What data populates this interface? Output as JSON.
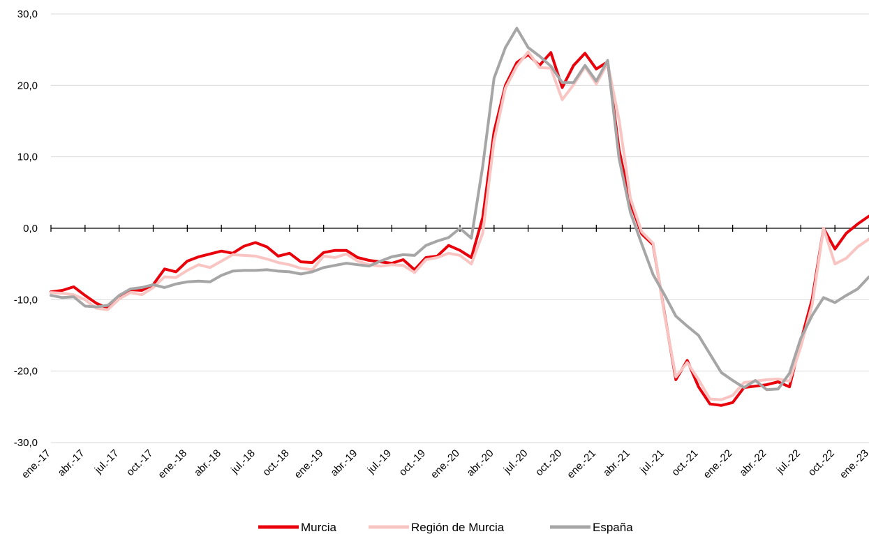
{
  "chart_data": {
    "type": "line",
    "ylim": [
      -30,
      30
    ],
    "yticks": [
      30,
      20,
      10,
      0,
      -10,
      -20,
      -30
    ],
    "ytick_labels": [
      "30,0",
      "20,0",
      "10,0",
      "0,0",
      "-10,0",
      "-20,0",
      "-30,0"
    ],
    "x_tick_labels": [
      "ene.-17",
      "abr.-17",
      "jul.-17",
      "oct.-17",
      "ene.-18",
      "abr.-18",
      "jul.-18",
      "oct.-18",
      "ene.-19",
      "abr.-19",
      "jul.-19",
      "oct.-19",
      "ene.-20",
      "abr.-20",
      "jul.-20",
      "oct.-20",
      "ene.-21",
      "abr.-21",
      "jul.-21",
      "oct.-21",
      "ene.-22",
      "abr.-22",
      "jul.-22",
      "oct.-22",
      "ene.-23"
    ],
    "x_start": "ene.-17",
    "x_end": "ene.-23",
    "x_frequency": "monthly",
    "grid": "horizontal",
    "legend_position": "bottom",
    "series": [
      {
        "name": "Murcia",
        "color": "#e8000b",
        "values": [
          -8.9,
          -8.7,
          -8.2,
          -9.4,
          -10.5,
          -11.2,
          -9.6,
          -8.6,
          -8.7,
          -7.9,
          -5.7,
          -6.1,
          -4.6,
          -4.0,
          -3.6,
          -3.2,
          -3.5,
          -2.5,
          -2.0,
          -2.6,
          -3.9,
          -3.5,
          -4.7,
          -4.8,
          -3.4,
          -3.1,
          -3.1,
          -4.1,
          -4.5,
          -4.7,
          -4.9,
          -4.4,
          -5.8,
          -4.1,
          -3.9,
          -2.4,
          -3.1,
          -4.1,
          1.5,
          13.5,
          20.0,
          23.2,
          24.3,
          22.8,
          24.6,
          19.7,
          22.8,
          24.5,
          22.3,
          23.3,
          11.0,
          3.5,
          -0.8,
          -2.3,
          -11.9,
          -21.2,
          -18.5,
          -22.2,
          -24.6,
          -24.8,
          -24.4,
          -22.3,
          -22.1,
          -21.9,
          -21.5,
          -22.2,
          -15.8,
          -9.9,
          0.0,
          -2.9,
          -0.7,
          0.6,
          1.7
        ]
      },
      {
        "name": "Región de Murcia",
        "color": "#f9c5c3",
        "values": [
          -9.0,
          -9.1,
          -9.3,
          -10.0,
          -11.2,
          -11.4,
          -9.9,
          -9.0,
          -9.3,
          -8.3,
          -6.8,
          -6.9,
          -5.9,
          -5.1,
          -5.5,
          -4.6,
          -3.7,
          -3.8,
          -3.9,
          -4.3,
          -4.8,
          -5.1,
          -5.6,
          -5.8,
          -3.9,
          -4.1,
          -3.6,
          -4.6,
          -5.1,
          -5.3,
          -5.1,
          -5.2,
          -6.2,
          -4.4,
          -4.1,
          -3.5,
          -3.8,
          -5.0,
          -0.7,
          12.2,
          19.6,
          22.7,
          24.7,
          22.5,
          22.4,
          18.0,
          20.1,
          22.6,
          20.2,
          23.1,
          15.2,
          4.2,
          -0.5,
          -2.1,
          -12.1,
          -20.8,
          -18.8,
          -21.2,
          -23.9,
          -24.0,
          -23.4,
          -21.6,
          -21.4,
          -21.2,
          -21.1,
          -21.4,
          -16.6,
          -10.7,
          0.0,
          -5.0,
          -4.2,
          -2.6,
          -1.5
        ]
      },
      {
        "name": "España",
        "color": "#a6a6a6",
        "values": [
          -9.4,
          -9.7,
          -9.6,
          -10.9,
          -11.0,
          -10.8,
          -9.4,
          -8.5,
          -8.3,
          -7.9,
          -8.3,
          -7.8,
          -7.5,
          -7.4,
          -7.5,
          -6.6,
          -6.0,
          -5.9,
          -5.9,
          -5.8,
          -6.0,
          -6.1,
          -6.4,
          -6.1,
          -5.5,
          -5.2,
          -4.9,
          -5.1,
          -5.3,
          -4.6,
          -4.0,
          -3.7,
          -3.8,
          -2.4,
          -1.8,
          -1.3,
          0.0,
          -1.4,
          8.7,
          21.0,
          25.3,
          28.0,
          25.3,
          24.1,
          22.7,
          20.4,
          20.4,
          22.8,
          20.6,
          23.5,
          9.8,
          2.2,
          -2.2,
          -6.5,
          -9.3,
          -12.3,
          -13.7,
          -15.0,
          -17.6,
          -20.2,
          -21.3,
          -22.3,
          -21.3,
          -22.6,
          -22.5,
          -20.3,
          -15.4,
          -12.2,
          -9.7,
          -10.4,
          -9.4,
          -8.5,
          -6.8
        ]
      }
    ]
  }
}
